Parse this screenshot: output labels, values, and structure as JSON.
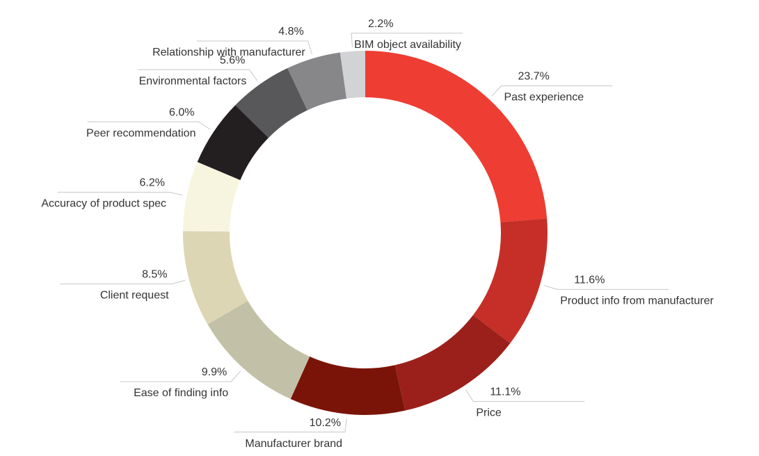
{
  "chart_data": {
    "type": "donut",
    "categories": [
      "Past experience",
      "Product info from manufacturer",
      "Price",
      "Manufacturer brand",
      "Ease of finding info",
      "Client request",
      "Accuracy of product spec",
      "Peer recommendation",
      "Environmental factors",
      "Relationship with manufacturer",
      "BIM object availability"
    ],
    "values": [
      23.7,
      11.6,
      11.1,
      10.2,
      9.9,
      8.5,
      6.2,
      6.0,
      5.6,
      4.8,
      2.2
    ],
    "value_labels": [
      "23.7%",
      "11.6%",
      "11.1%",
      "10.2%",
      "9.9%",
      "8.5%",
      "6.2%",
      "6.0%",
      "5.6%",
      "4.8%",
      "2.2%"
    ],
    "colors": [
      "#ee3d33",
      "#c52f28",
      "#9b201b",
      "#7a1408",
      "#c2c1a8",
      "#dcd6b4",
      "#f7f4e0",
      "#231f20",
      "#58585a",
      "#87878a",
      "#d2d3d5"
    ]
  }
}
